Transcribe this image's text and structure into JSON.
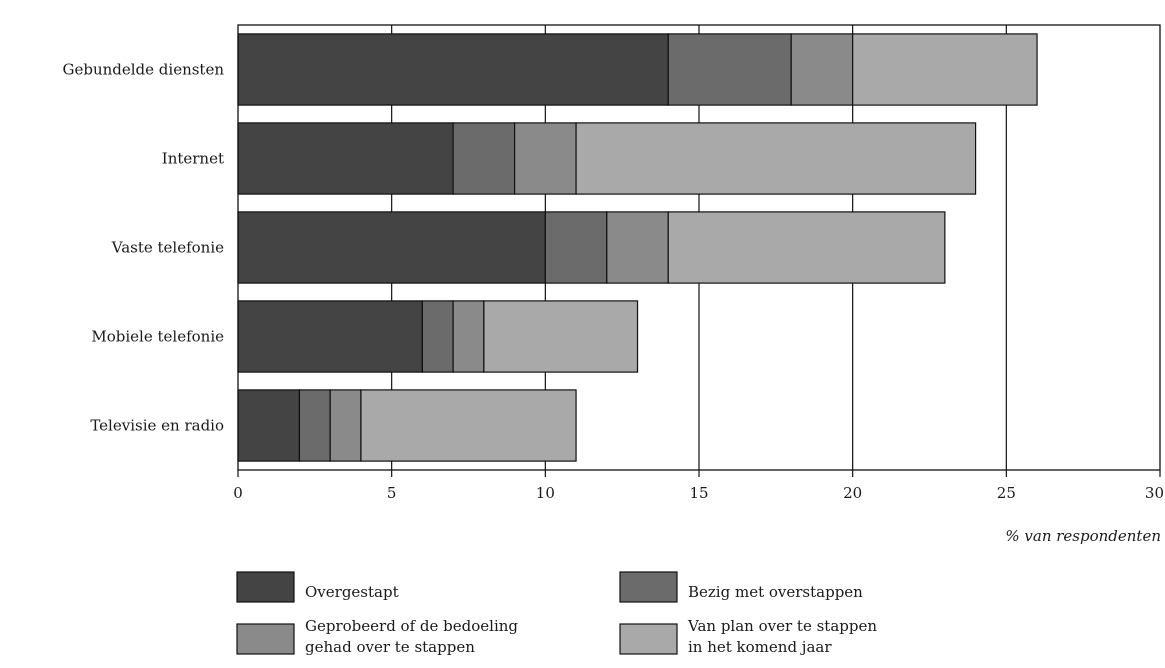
{
  "chart_data": {
    "type": "bar",
    "orientation": "horizontal",
    "stacked": true,
    "categories": [
      "Gebundelde diensten",
      "Internet",
      "Vaste telefonie",
      "Mobiele telefonie",
      "Televisie en radio"
    ],
    "series": [
      {
        "name": "Overgestapt",
        "values": [
          14,
          7,
          10,
          6,
          2
        ],
        "color": "#444444"
      },
      {
        "name": "Bezig met overstappen",
        "values": [
          4,
          2,
          2,
          1,
          1
        ],
        "color": "#6b6b6b"
      },
      {
        "name": "Geprobeerd of de bedoeling gehad over te stappen",
        "values": [
          2,
          2,
          2,
          1,
          1
        ],
        "color": "#8a8a8a"
      },
      {
        "name": "Van plan over te stappen in het komend jaar",
        "values": [
          6,
          13,
          9,
          5,
          7
        ],
        "color": "#a9a9a9"
      }
    ],
    "xlabel": "% van respondenten",
    "xlim": [
      0,
      30
    ],
    "xticks": [
      "0",
      "5",
      "10",
      "15",
      "20",
      "25",
      "30"
    ],
    "grid": "vertical",
    "legend": [
      {
        "lines": [
          "Overgestapt"
        ]
      },
      {
        "lines": [
          "Bezig met overstappen"
        ]
      },
      {
        "lines": [
          "Geprobeerd of de bedoeling",
          "gehad over te stappen"
        ]
      },
      {
        "lines": [
          "Van plan over te stappen",
          "in het komend jaar"
        ]
      }
    ],
    "legend_position": "bottom"
  }
}
